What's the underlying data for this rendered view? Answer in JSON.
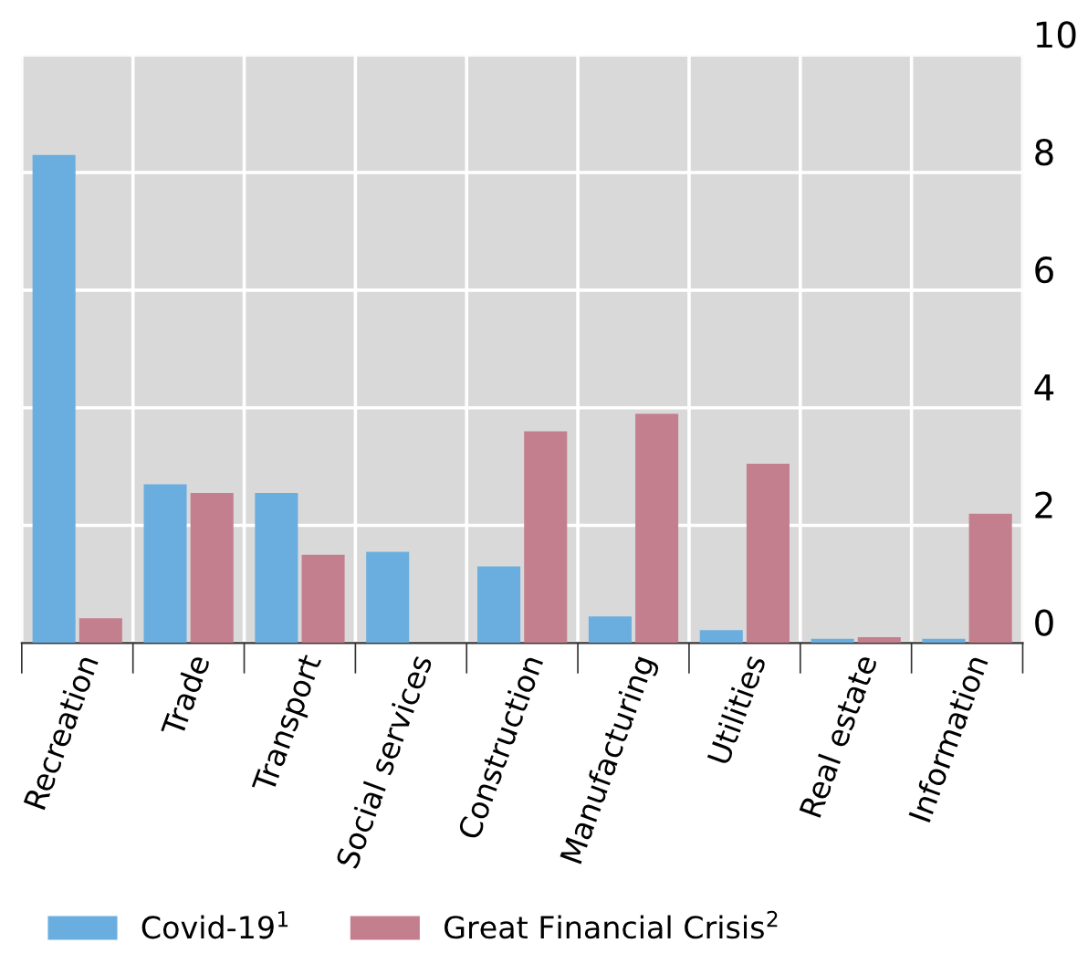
{
  "chart_data": {
    "type": "bar",
    "categories": [
      "Recreation",
      "Trade",
      "Transport",
      "Social services",
      "Construction",
      "Manufacturing",
      "Utilities",
      "Real estate",
      "Information"
    ],
    "series": [
      {
        "name": "Covid-19$^{1}$",
        "color": "#6aaee0",
        "values": [
          8.3,
          2.7,
          2.55,
          1.55,
          1.3,
          0.45,
          0.22,
          0.07,
          0.07
        ]
      },
      {
        "name": "Great Financial Crisis$^{2}$",
        "color": "#c47f8f",
        "values": [
          0.42,
          2.55,
          1.5,
          null,
          3.6,
          3.9,
          3.05,
          0.1,
          2.2
        ]
      }
    ],
    "ylim": [
      0,
      10
    ],
    "yticks": [
      0,
      2,
      4,
      6,
      8,
      10
    ],
    "grid": true,
    "legend": "bottom"
  }
}
